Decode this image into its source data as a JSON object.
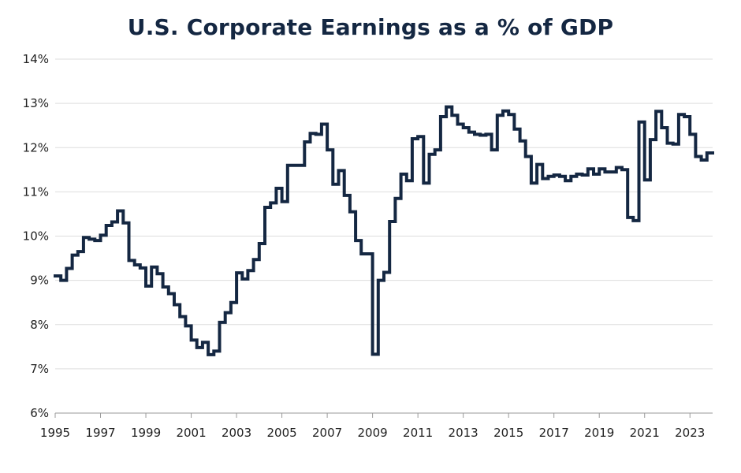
{
  "chart_data": {
    "type": "line",
    "title": "U.S. Corporate Earnings as a % of GDP",
    "xlabel": "",
    "ylabel": "",
    "xlim": [
      1995,
      2024
    ],
    "ylim": [
      6,
      14
    ],
    "y_ticks": [
      "6%",
      "7%",
      "8%",
      "9%",
      "10%",
      "11%",
      "12%",
      "13%",
      "14%"
    ],
    "x_ticks": [
      "1995",
      "1997",
      "1999",
      "2001",
      "2003",
      "2005",
      "2007",
      "2009",
      "2011",
      "2013",
      "2015",
      "2017",
      "2019",
      "2021",
      "2023"
    ],
    "grid": true,
    "line_style": "step",
    "series_color": "#142742",
    "series": [
      {
        "x": [
          1995.0,
          1995.25,
          1995.5,
          1995.75,
          1996.0,
          1996.25,
          1996.5,
          1996.75,
          1997.0,
          1997.25,
          1997.5,
          1997.75,
          1998.0,
          1998.25,
          1998.5,
          1998.75,
          1999.0,
          1999.25,
          1999.5,
          1999.75,
          2000.0,
          2000.25,
          2000.5,
          2000.75,
          2001.0,
          2001.25,
          2001.5,
          2001.75,
          2002.0,
          2002.25,
          2002.5,
          2002.75,
          2003.0,
          2003.25,
          2003.5,
          2003.75,
          2004.0,
          2004.25,
          2004.5,
          2004.75,
          2005.0,
          2005.25,
          2005.5,
          2005.75,
          2006.0,
          2006.25,
          2006.5,
          2006.75,
          2007.0,
          2007.25,
          2007.5,
          2007.75,
          2008.0,
          2008.25,
          2008.5,
          2008.75,
          2009.0,
          2009.25,
          2009.5,
          2009.75,
          2010.0,
          2010.25,
          2010.5,
          2010.75,
          2011.0,
          2011.25,
          2011.5,
          2011.75,
          2012.0,
          2012.25,
          2012.5,
          2012.75,
          2013.0,
          2013.25,
          2013.5,
          2013.75,
          2014.0,
          2014.25,
          2014.5,
          2014.75,
          2015.0,
          2015.25,
          2015.5,
          2015.75,
          2016.0,
          2016.25,
          2016.5,
          2016.75,
          2017.0,
          2017.25,
          2017.5,
          2017.75,
          2018.0,
          2018.25,
          2018.5,
          2018.75,
          2019.0,
          2019.25,
          2019.5,
          2019.75,
          2020.0,
          2020.25,
          2020.5,
          2020.75,
          2021.0,
          2021.25,
          2021.5,
          2021.75,
          2022.0,
          2022.25,
          2022.5,
          2022.75,
          2023.0,
          2023.25,
          2023.5,
          2023.75,
          2024.0
        ],
        "values": [
          9.1,
          9.0,
          9.27,
          9.57,
          9.65,
          9.97,
          9.93,
          9.9,
          10.02,
          10.24,
          10.32,
          10.57,
          10.3,
          9.45,
          9.35,
          9.28,
          8.87,
          9.3,
          9.15,
          8.85,
          8.7,
          8.45,
          8.18,
          7.97,
          7.65,
          7.48,
          7.6,
          7.32,
          7.4,
          8.05,
          8.27,
          8.5,
          9.17,
          9.03,
          9.22,
          9.47,
          9.83,
          10.65,
          10.75,
          11.08,
          10.78,
          11.6,
          11.6,
          11.6,
          12.13,
          12.32,
          12.3,
          12.53,
          11.95,
          11.17,
          11.48,
          10.92,
          10.55,
          9.9,
          9.6,
          9.6,
          7.33,
          9.0,
          9.18,
          10.33,
          10.85,
          11.4,
          11.25,
          12.2,
          12.25,
          11.2,
          11.85,
          11.95,
          12.7,
          12.92,
          12.73,
          12.53,
          12.45,
          12.35,
          12.3,
          12.28,
          12.3,
          11.95,
          12.73,
          12.83,
          12.75,
          12.42,
          12.15,
          11.8,
          11.2,
          11.62,
          11.3,
          11.35,
          11.38,
          11.35,
          11.25,
          11.35,
          11.4,
          11.38,
          11.52,
          11.4,
          11.52,
          11.45,
          11.45,
          11.55,
          11.5,
          10.42,
          10.35,
          12.58,
          11.27,
          12.18,
          12.82,
          12.45,
          12.1,
          12.08,
          12.75,
          12.7,
          12.3,
          11.8,
          11.72,
          11.88,
          11.88
        ]
      }
    ]
  }
}
